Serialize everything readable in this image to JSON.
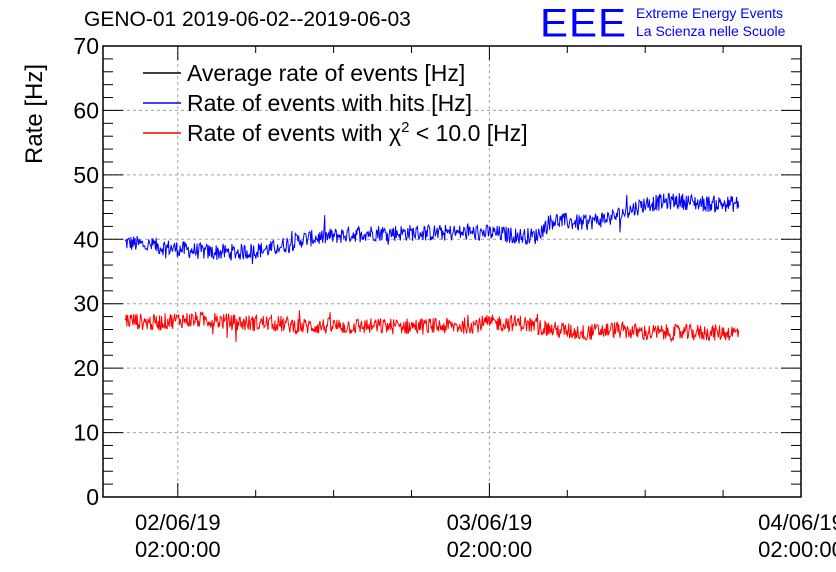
{
  "title": "GENO-01 2019-06-02--2019-06-03",
  "logo": {
    "mark": "EEE",
    "line1": "Extreme Energy Events",
    "line2": "La Scienza nelle Scuole"
  },
  "chart_data": {
    "type": "line",
    "title": "GENO-01 2019-06-02--2019-06-03",
    "xlabel": "",
    "ylabel": "Rate [Hz]",
    "ylim": [
      0,
      70
    ],
    "xlim": [
      -0.24,
      2.0
    ],
    "x_unit": "days since 02/06/19 02:00:00",
    "grid": true,
    "yticks": [
      0,
      10,
      20,
      30,
      40,
      50,
      60,
      70
    ],
    "xticks": [
      {
        "x": 0,
        "label_line1": "02/06/19",
        "label_line2": "02:00:00"
      },
      {
        "x": 1,
        "label_line1": "03/06/19",
        "label_line2": "02:00:00"
      },
      {
        "x": 2,
        "label_line1": "04/06/19",
        "label_line2": "02:00:00"
      }
    ],
    "legend": {
      "placement": "top-left",
      "entries": [
        {
          "text": "Average rate of events [Hz]",
          "color": "#000000"
        },
        {
          "text": "Rate of events with hits [Hz]",
          "color": "#0000ff"
        },
        {
          "text_prefix": "Rate of events with ",
          "symbol": "χ",
          "superscript": "2",
          "text_suffix": " < 10.0 [Hz]",
          "color": "#ff0000"
        }
      ]
    },
    "series": [
      {
        "name": "Rate of events with hits [Hz]",
        "color": "#0000ff",
        "x": [
          -0.17,
          -0.08,
          0.0,
          0.1,
          0.2,
          0.3,
          0.4,
          0.5,
          0.6,
          0.7,
          0.8,
          0.9,
          1.0,
          1.1,
          1.15,
          1.2,
          1.3,
          1.4,
          1.5,
          1.6,
          1.7,
          1.8
        ],
        "values": [
          39.5,
          39.0,
          38.5,
          38.0,
          38.0,
          38.5,
          40.0,
          40.5,
          41.0,
          41.0,
          41.0,
          41.0,
          41.0,
          40.5,
          40.5,
          43.0,
          42.5,
          43.5,
          45.5,
          46.0,
          45.5,
          45.5
        ]
      },
      {
        "name": "Rate of events with χ2 < 10.0 [Hz]",
        "color": "#ff0000",
        "x": [
          -0.17,
          -0.08,
          0.0,
          0.1,
          0.2,
          0.3,
          0.4,
          0.5,
          0.6,
          0.7,
          0.8,
          0.9,
          1.0,
          1.1,
          1.2,
          1.3,
          1.4,
          1.5,
          1.6,
          1.7,
          1.8
        ],
        "values": [
          27.5,
          27.0,
          27.5,
          27.5,
          27.0,
          27.0,
          26.5,
          26.5,
          26.5,
          26.5,
          26.5,
          26.5,
          27.0,
          27.0,
          26.0,
          25.5,
          26.0,
          25.5,
          25.5,
          25.5,
          25.5
        ]
      }
    ]
  },
  "colors": {
    "black": "#000000",
    "blue": "#0000ff",
    "red": "#ff0000",
    "grid": "#a0a0a0"
  }
}
